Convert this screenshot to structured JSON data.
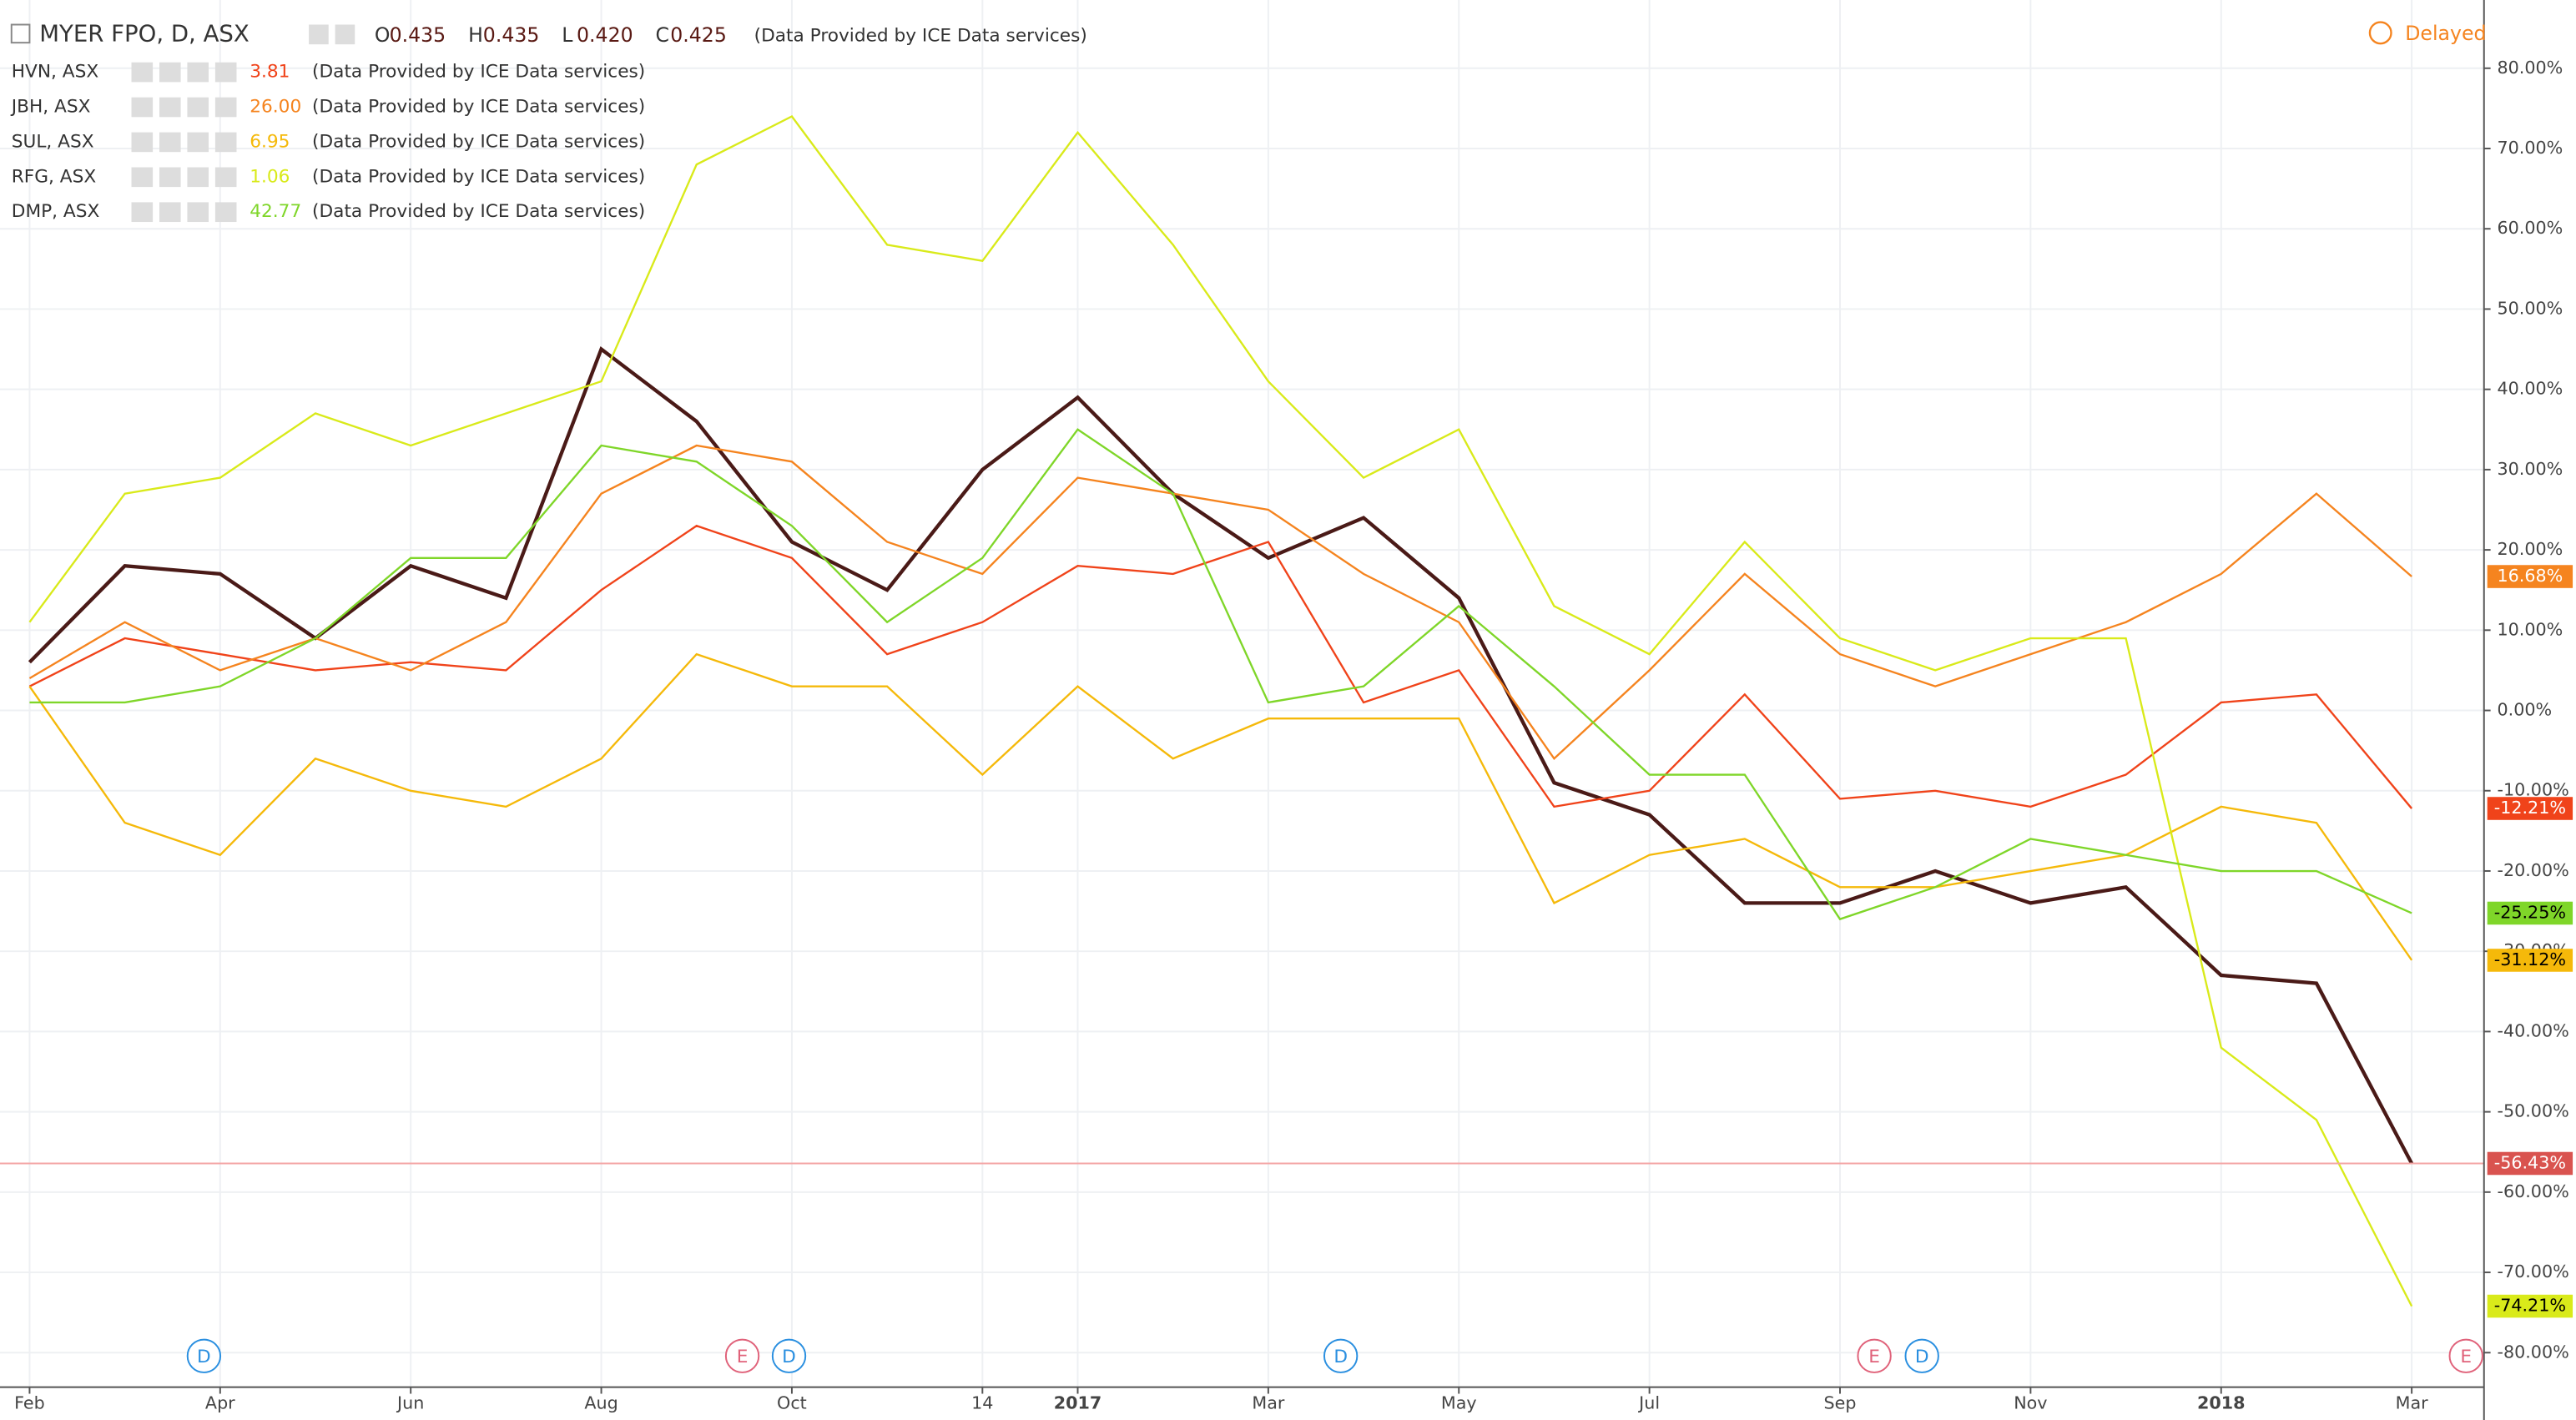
{
  "chart_data": {
    "type": "line",
    "ohlc": [
      {
        "label": "O",
        "value": "0.435"
      },
      {
        "label": "H",
        "value": "0.435"
      },
      {
        "label": "L",
        "value": "0.420"
      },
      {
        "label": "C",
        "value": "0.425"
      }
    ],
    "provider": "(Data Provided by ICE Data services)",
    "status": "Delayed",
    "categories": [
      "Feb",
      null,
      "Apr",
      null,
      "Jun",
      null,
      "Aug",
      null,
      "Oct",
      null,
      "14",
      "2017",
      null,
      "Mar",
      null,
      "May",
      null,
      "Jul",
      null,
      "Sep",
      null,
      "Nov",
      null,
      "2018",
      null,
      "Mar"
    ],
    "ylim": [
      -84.3,
      88.5
    ],
    "yticks": [
      {
        "value": 80,
        "label": "80.00%"
      },
      {
        "value": 70,
        "label": "70.00%"
      },
      {
        "value": 60,
        "label": "60.00%"
      },
      {
        "value": 50,
        "label": "50.00%"
      },
      {
        "value": 40,
        "label": "40.00%"
      },
      {
        "value": 30,
        "label": "30.00%"
      },
      {
        "value": 20,
        "label": "20.00%"
      },
      {
        "value": 10,
        "label": "10.00%"
      },
      {
        "value": 0,
        "label": "0.00%"
      },
      {
        "value": -10,
        "label": "-10.00%"
      },
      {
        "value": -20,
        "label": "-20.00%"
      },
      {
        "value": -30,
        "label": "-30.00%"
      },
      {
        "value": -40,
        "label": "-40.00%"
      },
      {
        "value": -50,
        "label": "-50.00%"
      },
      {
        "value": -60,
        "label": "-60.00%"
      },
      {
        "value": -70,
        "label": "-70.00%"
      },
      {
        "value": -80,
        "label": "-80.00%"
      }
    ],
    "grid": true,
    "series": [
      {
        "name": "MYER FPO, D, ASX",
        "color": "#4a1a17",
        "values": [
          6,
          18,
          17,
          9,
          18,
          14,
          45,
          36,
          21,
          15,
          30,
          39,
          27,
          19,
          24,
          14,
          -9,
          -13,
          -24,
          -24,
          -20,
          -24,
          -22,
          -33,
          -34,
          -56.43
        ],
        "value_labels": [
          null,
          null,
          null,
          null,
          null,
          null,
          null,
          null,
          null,
          null,
          null,
          null,
          null,
          null,
          null,
          null,
          null,
          null,
          null,
          null,
          null,
          null,
          null,
          null,
          null,
          "-56.43%"
        ]
      },
      {
        "name": "HVN, ASX",
        "last": "3.81",
        "color": "#f0431a",
        "values": [
          3,
          9,
          7,
          5,
          6,
          5,
          15,
          23,
          19,
          7,
          11,
          18,
          17,
          21,
          1,
          5,
          -12,
          -10,
          2,
          -11,
          -10,
          -12,
          -8,
          1,
          2,
          -12.21
        ],
        "value_labels": [
          null,
          null,
          null,
          null,
          null,
          null,
          null,
          null,
          null,
          null,
          null,
          null,
          null,
          null,
          null,
          null,
          null,
          null,
          null,
          null,
          null,
          null,
          null,
          null,
          null,
          "-12.21%"
        ]
      },
      {
        "name": "JBH, ASX",
        "last": "26.00",
        "color": "#f5841f",
        "values": [
          4,
          11,
          5,
          9,
          5,
          11,
          27,
          33,
          31,
          21,
          17,
          29,
          27,
          25,
          17,
          11,
          -6,
          5,
          17,
          7,
          3,
          7,
          11,
          17,
          27,
          16.68
        ],
        "value_labels": [
          null,
          null,
          null,
          null,
          null,
          null,
          null,
          null,
          null,
          null,
          null,
          null,
          null,
          null,
          null,
          null,
          null,
          null,
          null,
          null,
          null,
          null,
          null,
          null,
          null,
          "16.68%"
        ]
      },
      {
        "name": "SUL, ASX",
        "last": "6.95",
        "color": "#f5b90a",
        "values": [
          3,
          -14,
          -18,
          -6,
          -10,
          -12,
          -6,
          7,
          3,
          3,
          -8,
          3,
          -6,
          -1,
          -1,
          -1,
          -24,
          -18,
          -16,
          -22,
          -22,
          -20,
          -18,
          -12,
          -14,
          -31.12
        ],
        "value_labels": [
          null,
          null,
          null,
          null,
          null,
          null,
          null,
          null,
          null,
          null,
          null,
          null,
          null,
          null,
          null,
          null,
          null,
          null,
          null,
          null,
          null,
          null,
          null,
          null,
          null,
          "-31.12%"
        ]
      },
      {
        "name": "RFG, ASX",
        "last": "1.06",
        "color": "#d9ea1a",
        "values": [
          11,
          27,
          29,
          37,
          33,
          37,
          41,
          68,
          74,
          58,
          56,
          72,
          58,
          41,
          29,
          35,
          13,
          7,
          21,
          9,
          5,
          9,
          9,
          -42,
          -51,
          -74.21
        ],
        "value_labels": [
          null,
          null,
          null,
          null,
          null,
          null,
          null,
          null,
          null,
          null,
          null,
          null,
          null,
          null,
          null,
          null,
          null,
          null,
          null,
          null,
          null,
          null,
          null,
          null,
          null,
          "-74.21%"
        ]
      },
      {
        "name": "DMP, ASX",
        "last": "42.77",
        "color": "#7fd629",
        "values": [
          1,
          1,
          3,
          9,
          19,
          19,
          33,
          31,
          23,
          11,
          19,
          35,
          27,
          1,
          3,
          13,
          3,
          -8,
          -8,
          -26,
          -22,
          -16,
          -18,
          -20,
          -20,
          -25.25
        ],
        "value_labels": [
          null,
          null,
          null,
          null,
          null,
          null,
          null,
          null,
          null,
          null,
          null,
          null,
          null,
          null,
          null,
          null,
          null,
          null,
          null,
          null,
          null,
          null,
          null,
          null,
          null,
          "-25.25%"
        ]
      }
    ],
    "events": [
      {
        "label": "D",
        "x": 1.83
      },
      {
        "label": "E",
        "x": 7.48
      },
      {
        "label": "D",
        "x": 7.97
      },
      {
        "label": "D",
        "x": 13.76
      },
      {
        "label": "E",
        "x": 19.36
      },
      {
        "label": "D",
        "x": 19.86
      },
      {
        "label": "E",
        "x": 25.57
      }
    ]
  }
}
